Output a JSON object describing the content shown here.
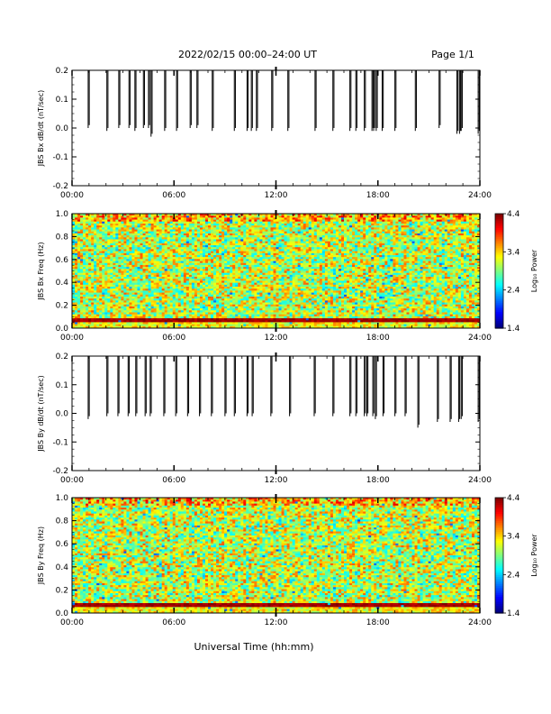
{
  "header": {
    "title": "2022/02/15  00:00–24:00 UT",
    "page": "Page 1/1"
  },
  "x_axis_label": "Universal Time (hh:mm)",
  "chart_data": [
    {
      "type": "line",
      "ylabel": "JBS Bx dB/dt (nT/sec)",
      "xlim": [
        0,
        24
      ],
      "ylim": [
        -0.2,
        0.2
      ],
      "x_ticks": [
        "00:00",
        "06:00",
        "12:00",
        "18:00",
        "24:00"
      ],
      "y_ticks": [
        "0.2",
        "0.1",
        "0.0",
        "-0.1",
        "-0.2"
      ],
      "spikes": [
        {
          "x": 0.95,
          "min": 0.0
        },
        {
          "x": 2.05,
          "min": -0.01
        },
        {
          "x": 2.75,
          "min": 0.0
        },
        {
          "x": 3.35,
          "min": 0.0
        },
        {
          "x": 3.7,
          "min": -0.01
        },
        {
          "x": 4.2,
          "min": 0.0
        },
        {
          "x": 4.5,
          "min": 0.0
        },
        {
          "x": 4.65,
          "min": -0.03
        },
        {
          "x": 5.45,
          "min": -0.01
        },
        {
          "x": 6.15,
          "min": -0.01
        },
        {
          "x": 6.95,
          "min": 0.0
        },
        {
          "x": 7.35,
          "min": 0.0
        },
        {
          "x": 8.25,
          "min": -0.01
        },
        {
          "x": 9.55,
          "min": -0.01
        },
        {
          "x": 10.3,
          "min": -0.01
        },
        {
          "x": 10.55,
          "min": -0.01
        },
        {
          "x": 10.85,
          "min": -0.01
        },
        {
          "x": 11.75,
          "min": -0.01
        },
        {
          "x": 12.7,
          "min": -0.01
        },
        {
          "x": 14.3,
          "min": -0.01
        },
        {
          "x": 15.35,
          "min": -0.01
        },
        {
          "x": 16.35,
          "min": -0.01
        },
        {
          "x": 16.7,
          "min": -0.01
        },
        {
          "x": 17.2,
          "min": -0.01
        },
        {
          "x": 17.65,
          "min": -0.01
        },
        {
          "x": 17.75,
          "min": -0.01
        },
        {
          "x": 17.9,
          "min": -0.01
        },
        {
          "x": 18.25,
          "min": -0.01
        },
        {
          "x": 19.0,
          "min": -0.01
        },
        {
          "x": 20.2,
          "min": -0.01
        },
        {
          "x": 21.6,
          "min": 0.0
        },
        {
          "x": 22.65,
          "min": -0.02
        },
        {
          "x": 22.8,
          "min": -0.02
        },
        {
          "x": 22.9,
          "min": -0.01
        },
        {
          "x": 23.9,
          "min": -0.02
        }
      ]
    },
    {
      "type": "heatmap",
      "ylabel": "JBS Bx Freq (Hz)",
      "xlim": [
        0,
        24
      ],
      "ylim": [
        0,
        1
      ],
      "x_ticks": [
        "00:00",
        "06:00",
        "12:00",
        "18:00",
        "24:00"
      ],
      "y_ticks": [
        "1.0",
        "0.8",
        "0.6",
        "0.4",
        "0.2",
        "0.0"
      ],
      "colorbar": {
        "label": "Log₁₀ Power",
        "ticks": [
          "4.4",
          "3.4",
          "2.4",
          "1.4"
        ],
        "range": [
          1.4,
          4.4
        ]
      },
      "band_hz": 0.07,
      "seed": 11
    },
    {
      "type": "line",
      "ylabel": "JBS By dB/dt (nT/sec)",
      "xlim": [
        0,
        24
      ],
      "ylim": [
        -0.2,
        0.2
      ],
      "x_ticks": [
        "00:00",
        "06:00",
        "12:00",
        "18:00",
        "24:00"
      ],
      "y_ticks": [
        "0.2",
        "0.1",
        "0.0",
        "-0.1",
        "-0.2"
      ],
      "spikes": [
        {
          "x": 0.95,
          "min": -0.02
        },
        {
          "x": 2.05,
          "min": -0.01
        },
        {
          "x": 2.7,
          "min": -0.01
        },
        {
          "x": 3.3,
          "min": -0.01
        },
        {
          "x": 3.75,
          "min": -0.01
        },
        {
          "x": 4.3,
          "min": -0.01
        },
        {
          "x": 4.6,
          "min": -0.01
        },
        {
          "x": 5.4,
          "min": -0.01
        },
        {
          "x": 6.1,
          "min": -0.01
        },
        {
          "x": 6.8,
          "min": -0.01
        },
        {
          "x": 7.5,
          "min": -0.01
        },
        {
          "x": 8.2,
          "min": -0.01
        },
        {
          "x": 9.0,
          "min": -0.01
        },
        {
          "x": 9.55,
          "min": -0.01
        },
        {
          "x": 10.3,
          "min": -0.01
        },
        {
          "x": 10.6,
          "min": -0.01
        },
        {
          "x": 11.7,
          "min": -0.01
        },
        {
          "x": 12.8,
          "min": -0.01
        },
        {
          "x": 14.25,
          "min": -0.01
        },
        {
          "x": 15.35,
          "min": -0.01
        },
        {
          "x": 16.35,
          "min": -0.01
        },
        {
          "x": 16.7,
          "min": -0.01
        },
        {
          "x": 17.2,
          "min": -0.01
        },
        {
          "x": 17.35,
          "min": -0.01
        },
        {
          "x": 17.7,
          "min": -0.01
        },
        {
          "x": 17.85,
          "min": -0.02
        },
        {
          "x": 18.3,
          "min": -0.01
        },
        {
          "x": 19.0,
          "min": -0.01
        },
        {
          "x": 19.6,
          "min": -0.01
        },
        {
          "x": 20.35,
          "min": -0.05
        },
        {
          "x": 21.5,
          "min": -0.03
        },
        {
          "x": 22.25,
          "min": -0.03
        },
        {
          "x": 22.75,
          "min": -0.03
        },
        {
          "x": 22.9,
          "min": -0.02
        },
        {
          "x": 23.9,
          "min": -0.03
        }
      ]
    },
    {
      "type": "heatmap",
      "ylabel": "JBS By Freq (Hz)",
      "xlim": [
        0,
        24
      ],
      "ylim": [
        0,
        1
      ],
      "x_ticks": [
        "00:00",
        "06:00",
        "12:00",
        "18:00",
        "24:00"
      ],
      "y_ticks": [
        "1.0",
        "0.8",
        "0.6",
        "0.4",
        "0.2",
        "0.0"
      ],
      "colorbar": {
        "label": "Log₁₀ Power",
        "ticks": [
          "4.4",
          "3.4",
          "2.4",
          "1.4"
        ],
        "range": [
          1.4,
          4.4
        ]
      },
      "band_hz": 0.07,
      "seed": 29
    }
  ]
}
